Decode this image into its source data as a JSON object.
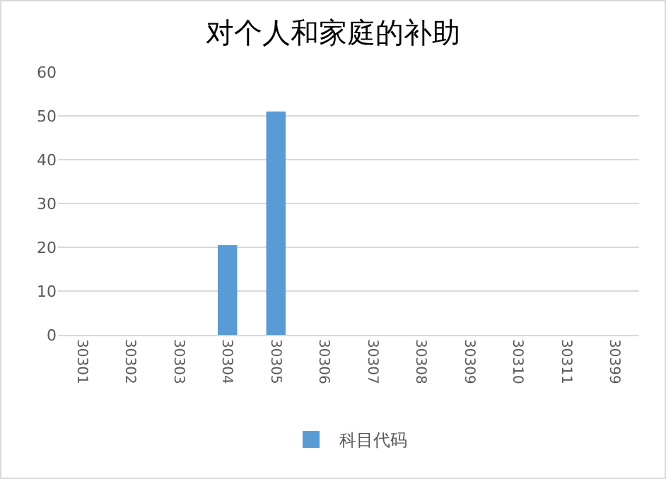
{
  "chart_data": {
    "type": "bar",
    "title": "对个人和家庭的补助",
    "categories": [
      "30301",
      "30302",
      "30303",
      "30304",
      "30305",
      "30306",
      "30307",
      "30308",
      "30309",
      "30310",
      "30311",
      "30399"
    ],
    "series": [
      {
        "name": "科目代码",
        "color": "#5b9bd5",
        "values": [
          null,
          null,
          null,
          20.5,
          51,
          null,
          null,
          null,
          null,
          null,
          null,
          null
        ]
      }
    ],
    "ylim": [
      0,
      60
    ],
    "yticks": [
      0,
      10,
      20,
      30,
      40,
      50,
      60
    ],
    "grid": "y",
    "legend": "bottom"
  }
}
